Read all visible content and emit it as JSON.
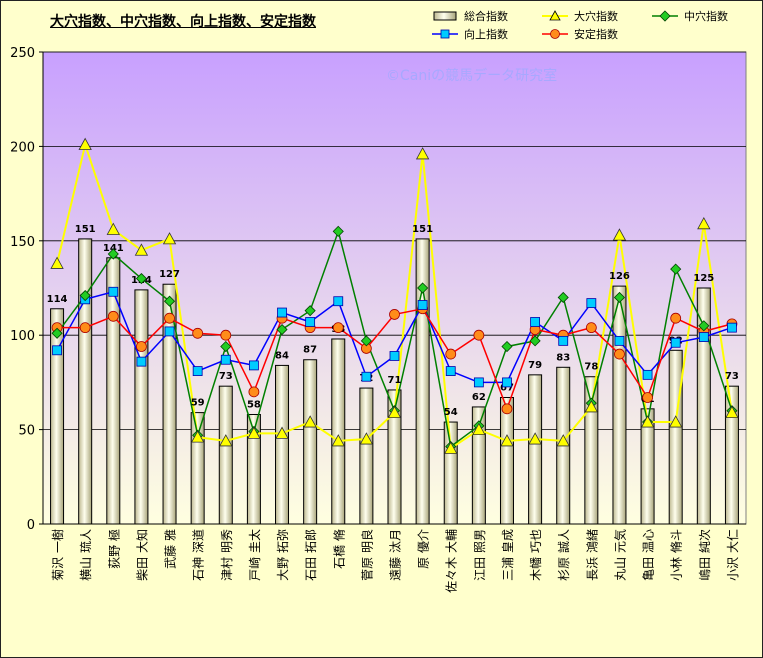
{
  "title": "大穴指数、中穴指数、向上指数、安定指数",
  "watermark": "©Caniの競馬データ研究室",
  "colors": {
    "background": "#ffffcc",
    "plot_top": "#c8a0ff",
    "plot_bottom": "#ffffe0",
    "bar_fill": "#eeeebb",
    "oana": "#ffff00",
    "chuana": "#008000",
    "kojo": "#00ccff",
    "antei": "#ff0000"
  },
  "chart_data": {
    "type": "bar",
    "ylim": [
      0,
      250
    ],
    "yticks": [
      0,
      50,
      100,
      150,
      200,
      250
    ],
    "grid": true,
    "legend_position": "top-right",
    "categories": [
      "菊沢 一樹",
      "横山 琉人",
      "荻野 極",
      "柴田 大知",
      "武藤 雅",
      "石神 深道",
      "津村 明秀",
      "戸崎 圭太",
      "大野 拓弥",
      "石田 拓郎",
      "石橋 脩",
      "菅原 明良",
      "遠藤 汰月",
      "原 優介",
      "佐々木 大輔",
      "江田 照男",
      "三浦 皇成",
      "木幡 巧也",
      "杉原 誠人",
      "長浜 鴻緒",
      "丸山 元気",
      "亀田 温心",
      "小林 脩斗",
      "嶋田 純次",
      "小沢 大仁"
    ],
    "series": [
      {
        "name": "総合指数",
        "type": "bar",
        "values": [
          114,
          151,
          141,
          124,
          127,
          59,
          73,
          58,
          84,
          87,
          98,
          72,
          71,
          151,
          54,
          62,
          67,
          79,
          83,
          78,
          126,
          61,
          92,
          125,
          73
        ]
      },
      {
        "name": "大穴指数",
        "type": "line",
        "marker": "triangle",
        "values": [
          138,
          201,
          156,
          145,
          151,
          46,
          44,
          48,
          48,
          54,
          44,
          45,
          59,
          196,
          40,
          50,
          44,
          45,
          44,
          62,
          153,
          54,
          54,
          159,
          59
        ]
      },
      {
        "name": "中穴指数",
        "type": "line",
        "marker": "diamond",
        "values": [
          101,
          121,
          143,
          130,
          118,
          47,
          94,
          49,
          103,
          113,
          155,
          97,
          60,
          125,
          41,
          52,
          94,
          97,
          120,
          64,
          120,
          54,
          135,
          105,
          60
        ]
      },
      {
        "name": "向上指数",
        "type": "line",
        "marker": "square",
        "values": [
          92,
          119,
          123,
          86,
          102,
          81,
          87,
          84,
          112,
          107,
          118,
          78,
          89,
          116,
          81,
          75,
          75,
          107,
          97,
          117,
          97,
          79,
          96,
          99,
          104
        ]
      },
      {
        "name": "安定指数",
        "type": "line",
        "marker": "circle",
        "values": [
          104,
          104,
          110,
          94,
          109,
          101,
          100,
          70,
          109,
          104,
          104,
          93,
          111,
          114,
          90,
          100,
          61,
          103,
          100,
          104,
          90,
          67,
          109,
          102,
          106
        ]
      }
    ]
  }
}
